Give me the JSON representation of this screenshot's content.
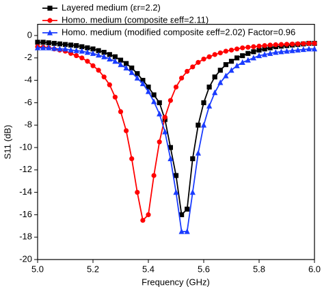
{
  "chart_data": {
    "type": "line",
    "x_label": "Frequency (GHz)",
    "y_label": "S11 (dB)",
    "x": [
      5.0,
      5.02,
      5.04,
      5.06,
      5.08,
      5.1,
      5.12,
      5.14,
      5.16,
      5.18,
      5.2,
      5.22,
      5.24,
      5.26,
      5.28,
      5.3,
      5.32,
      5.34,
      5.36,
      5.38,
      5.4,
      5.42,
      5.44,
      5.46,
      5.48,
      5.5,
      5.52,
      5.54,
      5.56,
      5.58,
      5.6,
      5.62,
      5.64,
      5.66,
      5.68,
      5.7,
      5.72,
      5.74,
      5.76,
      5.78,
      5.8,
      5.82,
      5.84,
      5.86,
      5.88,
      5.9,
      5.92,
      5.94,
      5.96,
      5.98,
      6.0
    ],
    "series": [
      {
        "name": "Layered medium (εr=2.2)",
        "color": "#000000",
        "marker": "square",
        "values": [
          -0.6,
          -0.6,
          -0.65,
          -0.7,
          -0.75,
          -0.8,
          -0.85,
          -0.9,
          -1.0,
          -1.1,
          -1.2,
          -1.35,
          -1.5,
          -1.7,
          -1.9,
          -2.2,
          -2.5,
          -2.9,
          -3.4,
          -4.0,
          -4.6,
          -5.3,
          -6.0,
          -7.5,
          -10.0,
          -12.5,
          -16.0,
          -15.5,
          -11.0,
          -8.0,
          -6.0,
          -4.6,
          -3.7,
          -3.1,
          -2.6,
          -2.3,
          -2.0,
          -1.8,
          -1.6,
          -1.45,
          -1.3,
          -1.2,
          -1.1,
          -1.0,
          -0.95,
          -0.9,
          -0.85,
          -0.8,
          -0.75,
          -0.7,
          -0.7
        ]
      },
      {
        "name": "Homo. medium (composite εeff=2.11)",
        "color": "#ff0000",
        "marker": "circle",
        "values": [
          -1.0,
          -1.05,
          -1.1,
          -1.2,
          -1.3,
          -1.4,
          -1.6,
          -1.8,
          -2.0,
          -2.3,
          -2.7,
          -3.1,
          -3.7,
          -4.4,
          -5.5,
          -6.8,
          -8.5,
          -11.0,
          -14.0,
          -16.5,
          -16.0,
          -12.5,
          -9.5,
          -7.3,
          -5.8,
          -4.6,
          -3.8,
          -3.2,
          -2.8,
          -2.4,
          -2.1,
          -1.9,
          -1.7,
          -1.55,
          -1.4,
          -1.3,
          -1.2,
          -1.1,
          -1.05,
          -1.0,
          -0.95,
          -0.9,
          -0.85,
          -0.82,
          -0.8,
          -0.78,
          -0.76,
          -0.74,
          -0.72,
          -0.7,
          -0.7
        ]
      },
      {
        "name": "Homo. medium (modified composite εeff=2.02) Factor=0.96",
        "color": "#1a3cff",
        "marker": "triangle",
        "values": [
          -1.1,
          -1.1,
          -1.1,
          -1.15,
          -1.2,
          -1.2,
          -1.3,
          -1.35,
          -1.4,
          -1.5,
          -1.6,
          -1.75,
          -1.9,
          -2.1,
          -2.3,
          -2.6,
          -2.9,
          -3.3,
          -3.8,
          -4.3,
          -5.0,
          -5.9,
          -7.0,
          -8.6,
          -11.0,
          -14.0,
          -17.5,
          -17.5,
          -14.0,
          -10.5,
          -8.0,
          -6.3,
          -5.1,
          -4.2,
          -3.6,
          -3.1,
          -2.7,
          -2.4,
          -2.2,
          -2.0,
          -1.8,
          -1.7,
          -1.6,
          -1.5,
          -1.45,
          -1.4,
          -1.35,
          -1.3,
          -1.25,
          -1.2,
          -1.2
        ]
      }
    ],
    "xlim": [
      5.0,
      6.0
    ],
    "xticks": [
      {
        "value": 5,
        "label": "5.0"
      },
      5.2,
      5.4,
      5.6,
      5.8,
      {
        "value": 6,
        "label": "6.0"
      }
    ],
    "ylim": [
      -20,
      1
    ],
    "yticks": [
      0,
      -2,
      -4,
      -6,
      -8,
      -10,
      -12,
      -14,
      -16,
      -18,
      -20
    ],
    "grid": false,
    "legend": "top-left"
  }
}
